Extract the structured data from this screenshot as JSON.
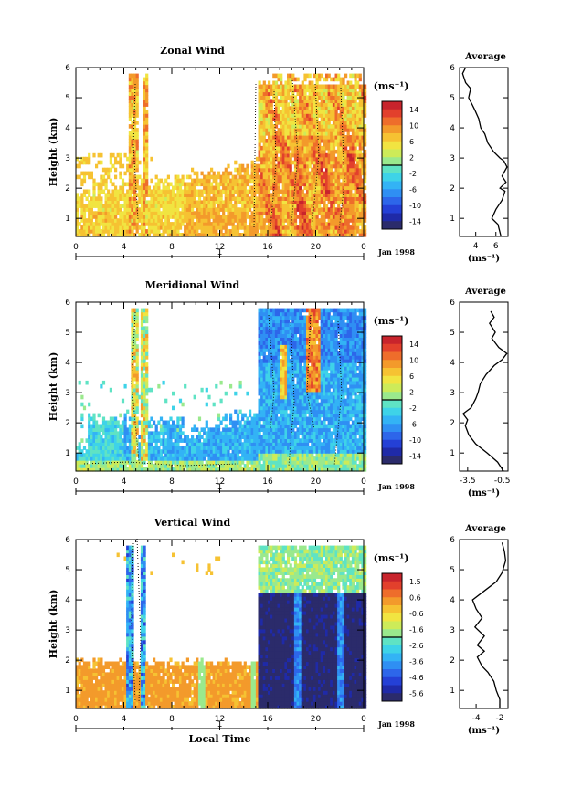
{
  "chart_data": [
    {
      "type": "heatmap",
      "title": "Zonal Wind",
      "xlabel": "",
      "ylabel": "Height (km)",
      "x_ticks": [
        "0",
        "4",
        "8",
        "12",
        "16",
        "20",
        "0"
      ],
      "y_ticks": [
        "1",
        "2",
        "3",
        "4",
        "5",
        "6"
      ],
      "xlim": [
        0,
        24
      ],
      "ylim": [
        0.4,
        6
      ],
      "day_marker": "1",
      "date_label": "Jan 1998",
      "colorbar": {
        "unit": "(ms⁻¹)",
        "ticks": [
          "14",
          "10",
          "6",
          "2",
          "-2",
          "-6",
          "-10",
          "-14"
        ],
        "range": [
          -16,
          16
        ]
      },
      "profile": {
        "title": "Average",
        "xlabel": "(ms⁻¹)",
        "x_ticks": [
          "4",
          "6"
        ],
        "xlim": [
          2.4,
          7.2
        ],
        "points": [
          [
            6.5,
            0.4
          ],
          [
            6.2,
            0.8
          ],
          [
            5.6,
            1.0
          ],
          [
            6.0,
            1.3
          ],
          [
            6.6,
            1.6
          ],
          [
            6.9,
            1.9
          ],
          [
            6.4,
            2.0
          ],
          [
            7.0,
            2.2
          ],
          [
            6.6,
            2.4
          ],
          [
            7.1,
            2.7
          ],
          [
            6.8,
            2.9
          ],
          [
            6.4,
            3.0
          ],
          [
            5.8,
            3.2
          ],
          [
            5.2,
            3.5
          ],
          [
            4.9,
            3.8
          ],
          [
            4.5,
            4.0
          ],
          [
            4.3,
            4.3
          ],
          [
            3.9,
            4.6
          ],
          [
            3.6,
            4.8
          ],
          [
            3.3,
            5.0
          ],
          [
            3.5,
            5.3
          ],
          [
            3.0,
            5.5
          ],
          [
            2.7,
            5.8
          ],
          [
            3.0,
            6.0
          ]
        ]
      }
    },
    {
      "type": "heatmap",
      "title": "Meridional Wind",
      "xlabel": "",
      "ylabel": "Height (km)",
      "x_ticks": [
        "0",
        "4",
        "8",
        "12",
        "16",
        "20",
        "0"
      ],
      "y_ticks": [
        "1",
        "2",
        "3",
        "4",
        "5",
        "6"
      ],
      "xlim": [
        0,
        24
      ],
      "ylim": [
        0.4,
        6
      ],
      "day_marker": "1",
      "date_label": "Jan 1998",
      "colorbar": {
        "unit": "(ms⁻¹)",
        "ticks": [
          "14",
          "10",
          "6",
          "2",
          "-2",
          "-6",
          "-10",
          "-14"
        ],
        "range": [
          -16,
          16
        ]
      },
      "profile": {
        "title": "Average",
        "xlabel": "(ms⁻¹)",
        "x_ticks": [
          "-3.5",
          "-0.5"
        ],
        "xlim": [
          -4.2,
          0.0
        ],
        "points": [
          [
            -0.4,
            0.4
          ],
          [
            -0.9,
            0.7
          ],
          [
            -1.8,
            1.0
          ],
          [
            -2.8,
            1.3
          ],
          [
            -3.4,
            1.6
          ],
          [
            -3.7,
            1.9
          ],
          [
            -3.5,
            2.1
          ],
          [
            -3.9,
            2.3
          ],
          [
            -3.2,
            2.5
          ],
          [
            -2.8,
            2.8
          ],
          [
            -2.6,
            3.0
          ],
          [
            -2.4,
            3.3
          ],
          [
            -1.9,
            3.6
          ],
          [
            -1.2,
            3.9
          ],
          [
            -0.5,
            4.1
          ],
          [
            -0.1,
            4.3
          ],
          [
            -0.8,
            4.5
          ],
          [
            -1.4,
            4.8
          ],
          [
            -1.1,
            5.0
          ],
          [
            -1.6,
            5.3
          ],
          [
            -1.2,
            5.5
          ],
          [
            -1.5,
            5.7
          ]
        ]
      }
    },
    {
      "type": "heatmap",
      "title": "Vertical Wind",
      "xlabel": "Local Time",
      "ylabel": "Height (km)",
      "x_ticks": [
        "0",
        "4",
        "8",
        "12",
        "16",
        "20",
        "0"
      ],
      "y_ticks": [
        "1",
        "2",
        "3",
        "4",
        "5",
        "6"
      ],
      "xlim": [
        0,
        24
      ],
      "ylim": [
        0.4,
        6
      ],
      "day_marker": "1",
      "date_label": "Jan 1998",
      "colorbar": {
        "unit": "(ms⁻¹)",
        "ticks": [
          "1.5",
          "0.6",
          "-0.6",
          "-1.6",
          "-2.6",
          "-3.6",
          "-4.6",
          "-5.6"
        ],
        "range": [
          -6.2,
          2.1
        ]
      },
      "profile": {
        "title": "Average",
        "xlabel": "(ms⁻¹)",
        "x_ticks": [
          "-4",
          "-2"
        ],
        "xlim": [
          -5.4,
          -1.3
        ],
        "points": [
          [
            -2.0,
            0.4
          ],
          [
            -2.0,
            0.7
          ],
          [
            -2.3,
            1.0
          ],
          [
            -2.5,
            1.3
          ],
          [
            -3.0,
            1.6
          ],
          [
            -3.5,
            1.8
          ],
          [
            -3.9,
            2.1
          ],
          [
            -3.3,
            2.3
          ],
          [
            -3.9,
            2.5
          ],
          [
            -3.3,
            2.8
          ],
          [
            -4.1,
            3.1
          ],
          [
            -3.5,
            3.4
          ],
          [
            -4.0,
            3.7
          ],
          [
            -4.3,
            4.0
          ],
          [
            -3.3,
            4.3
          ],
          [
            -2.3,
            4.6
          ],
          [
            -1.8,
            4.9
          ],
          [
            -1.5,
            5.3
          ],
          [
            -1.6,
            5.6
          ],
          [
            -1.8,
            5.9
          ]
        ]
      }
    }
  ]
}
